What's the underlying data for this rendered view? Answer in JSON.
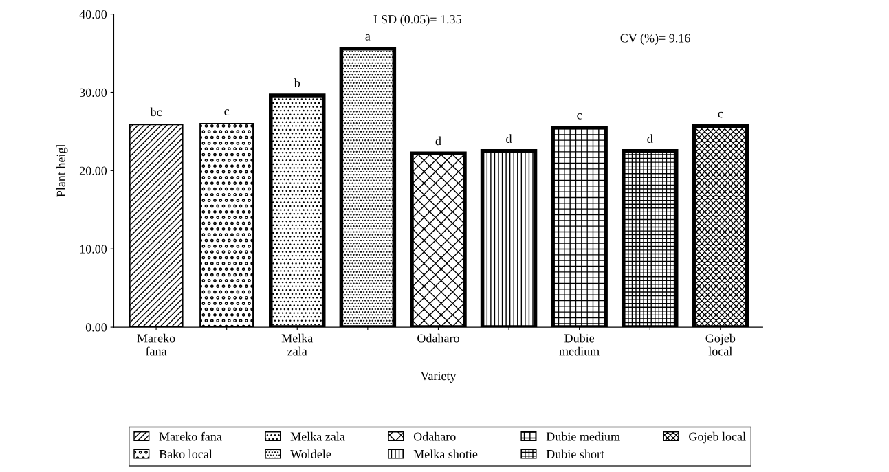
{
  "chart_data": {
    "type": "bar",
    "xlabel": "Variety",
    "ylabel": "Plant heigl",
    "categories": [
      "Mareko\nfana",
      null,
      "Melka\nzala",
      null,
      "Odaharo",
      null,
      "Dubie\nmedium",
      null,
      "Gojeb\nlocal"
    ],
    "series": [
      {
        "name": "Mareko fana",
        "color": "#000000",
        "values": [
          25.9,
          null,
          null,
          null,
          null,
          null,
          null,
          null,
          null
        ],
        "value_labels": [
          "bc",
          null,
          null,
          null,
          null,
          null,
          null,
          null,
          null
        ]
      },
      {
        "name": "Bako local",
        "color": "#000000",
        "values": [
          null,
          26.0,
          null,
          null,
          null,
          null,
          null,
          null,
          null
        ],
        "value_labels": [
          null,
          "c",
          null,
          null,
          null,
          null,
          null,
          null,
          null
        ]
      },
      {
        "name": "Melka zala",
        "color": "#000000",
        "values": [
          null,
          null,
          29.6,
          null,
          null,
          null,
          null,
          null,
          null
        ],
        "value_labels": [
          null,
          null,
          "b",
          null,
          null,
          null,
          null,
          null,
          null
        ]
      },
      {
        "name": "Woldele",
        "color": "#000000",
        "values": [
          null,
          null,
          null,
          35.6,
          null,
          null,
          null,
          null,
          null
        ],
        "value_labels": [
          null,
          null,
          null,
          "a",
          null,
          null,
          null,
          null,
          null
        ]
      },
      {
        "name": "Odaharo",
        "color": "#000000",
        "values": [
          null,
          null,
          null,
          null,
          22.2,
          null,
          null,
          null,
          null
        ],
        "value_labels": [
          null,
          null,
          null,
          null,
          "d",
          null,
          null,
          null,
          null
        ]
      },
      {
        "name": "Melka shotie",
        "color": "#000000",
        "values": [
          null,
          null,
          null,
          null,
          null,
          22.5,
          null,
          null,
          null
        ],
        "value_labels": [
          null,
          null,
          null,
          null,
          null,
          "d",
          null,
          null,
          null
        ]
      },
      {
        "name": "Dubie medium",
        "color": "#000000",
        "values": [
          null,
          null,
          null,
          null,
          null,
          null,
          25.5,
          null,
          null
        ],
        "value_labels": [
          null,
          null,
          null,
          null,
          null,
          null,
          "c",
          null,
          null
        ]
      },
      {
        "name": "Dubie short",
        "color": "#000000",
        "values": [
          null,
          null,
          null,
          null,
          null,
          null,
          null,
          22.5,
          null
        ],
        "value_labels": [
          null,
          null,
          null,
          null,
          null,
          null,
          null,
          "d",
          null
        ]
      },
      {
        "name": "Gojeb local",
        "color": "#000000",
        "values": [
          null,
          null,
          null,
          null,
          null,
          null,
          null,
          null,
          25.7
        ],
        "value_labels": [
          null,
          null,
          null,
          null,
          null,
          null,
          null,
          null,
          "c"
        ]
      }
    ],
    "ylim": [
      0,
      40
    ],
    "yticks": [
      {
        "value": 0,
        "label": "0.00"
      },
      {
        "value": 10,
        "label": "10.00"
      },
      {
        "value": 20,
        "label": "20.00"
      },
      {
        "value": 30,
        "label": "30.00"
      },
      {
        "value": 40,
        "label": "40.00"
      }
    ],
    "annotations": [
      "LSD (0.05)= 1.35",
      "CV (%)= 9.16"
    ],
    "legend": "bottom",
    "grid": false
  }
}
